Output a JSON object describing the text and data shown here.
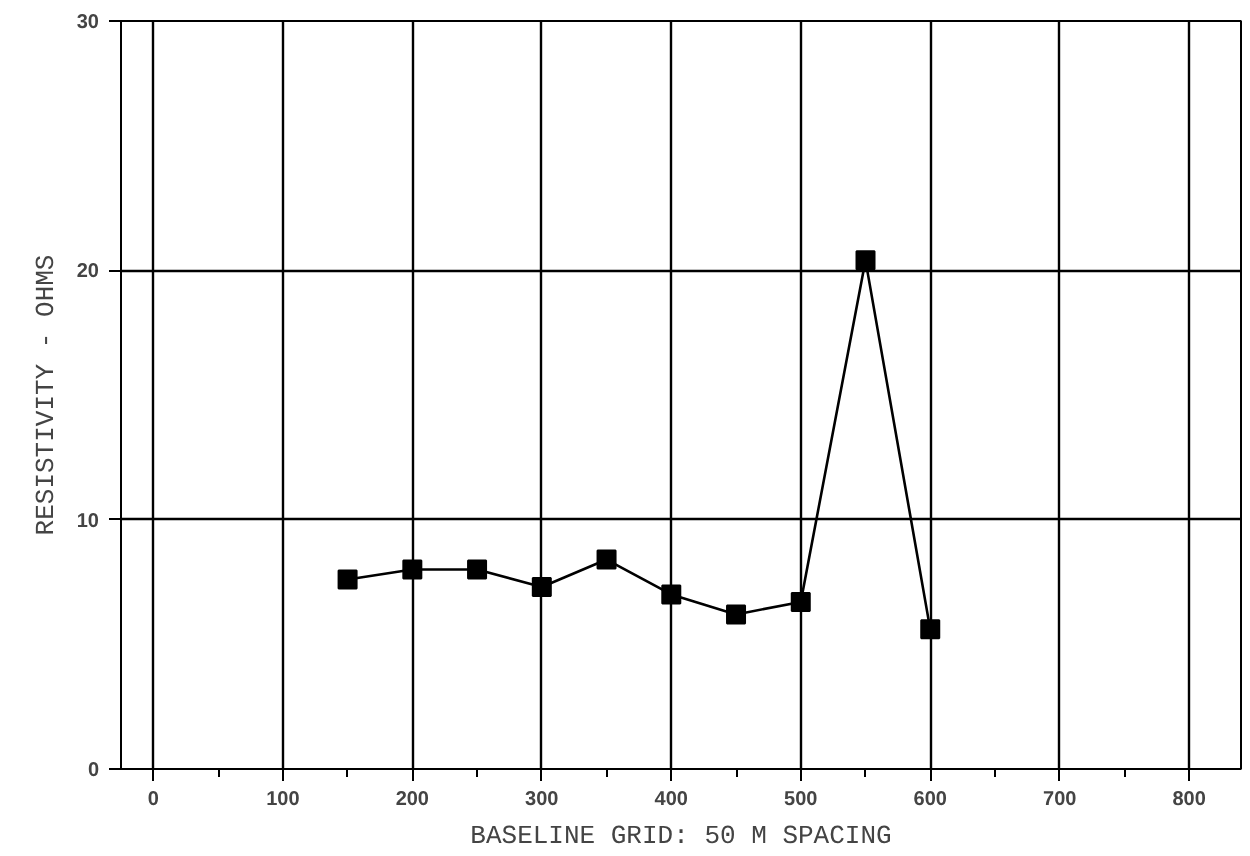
{
  "chart_data": {
    "type": "line",
    "xlabel": "BASELINE GRID: 50 M SPACING",
    "ylabel": "RESISTIVITY - OHMS",
    "x": [
      150,
      200,
      250,
      300,
      350,
      400,
      450,
      500,
      550,
      600
    ],
    "series": [
      {
        "color": "#000000",
        "values": [
          7.6,
          8.0,
          8.0,
          7.3,
          8.4,
          7.0,
          6.2,
          6.7,
          20.4,
          5.6
        ]
      }
    ],
    "xlim": [
      -25,
      840
    ],
    "ylim": [
      0,
      30
    ],
    "xticks": [
      0,
      100,
      200,
      300,
      400,
      500,
      600,
      700,
      800
    ],
    "yticks": [
      0,
      10,
      20,
      30
    ],
    "grid": true,
    "marker": "square",
    "line_style": "solid"
  }
}
